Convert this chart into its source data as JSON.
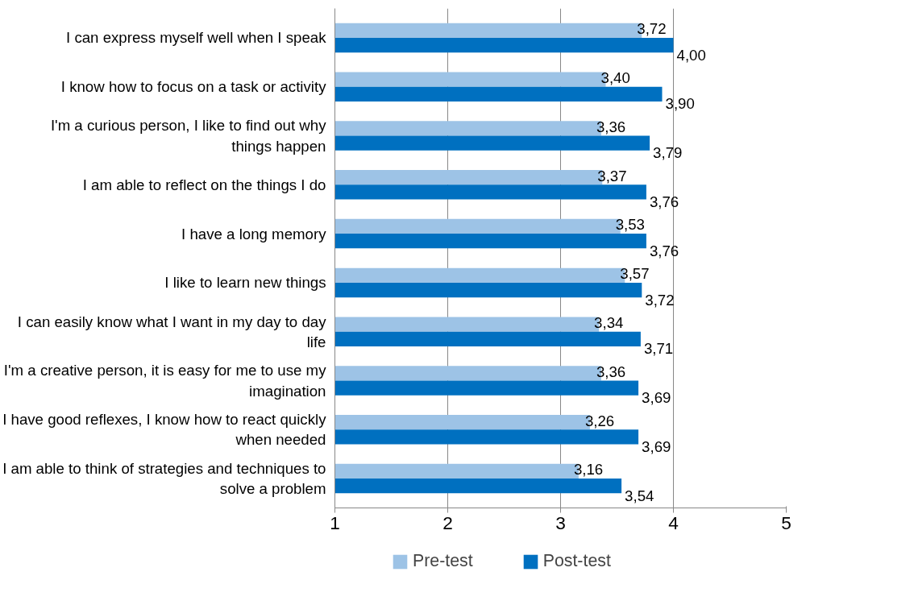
{
  "chart_data": {
    "type": "bar",
    "orientation": "horizontal",
    "categories": [
      "I can express myself well when I speak",
      "I know how to focus on a task or activity",
      "I'm a curious person, I like to find out why things happen",
      "I am able to reflect on the things I do",
      "I have a long memory",
      "I like to learn new things",
      "I can easily know what I want in my day to day life",
      "I'm a creative person, it is easy for me to use my imagination",
      "I have good reflexes, I know how to react quickly when needed",
      "I am able to think of strategies and techniques to solve a problem"
    ],
    "series": [
      {
        "name": "Pre-test",
        "color": "#9dc3e6",
        "values": [
          3.72,
          3.4,
          3.36,
          3.37,
          3.53,
          3.57,
          3.34,
          3.36,
          3.26,
          3.16
        ],
        "value_labels": [
          "3,72",
          "3,40",
          "3,36",
          "3,37",
          "3,53",
          "3,57",
          "3,34",
          "3,36",
          "3,26",
          "3,16"
        ]
      },
      {
        "name": "Post-test",
        "color": "#0070c0",
        "values": [
          4.0,
          3.9,
          3.79,
          3.76,
          3.76,
          3.72,
          3.71,
          3.69,
          3.69,
          3.54
        ],
        "value_labels": [
          "4,00",
          "3,90",
          "3,79",
          "3,76",
          "3,76",
          "3,72",
          "3,71",
          "3,69",
          "3,69",
          "3,54"
        ]
      }
    ],
    "xlim": [
      1,
      5
    ],
    "xticks": [
      1,
      2,
      3,
      4,
      5
    ],
    "grid": "x",
    "legend": "bottom left"
  }
}
